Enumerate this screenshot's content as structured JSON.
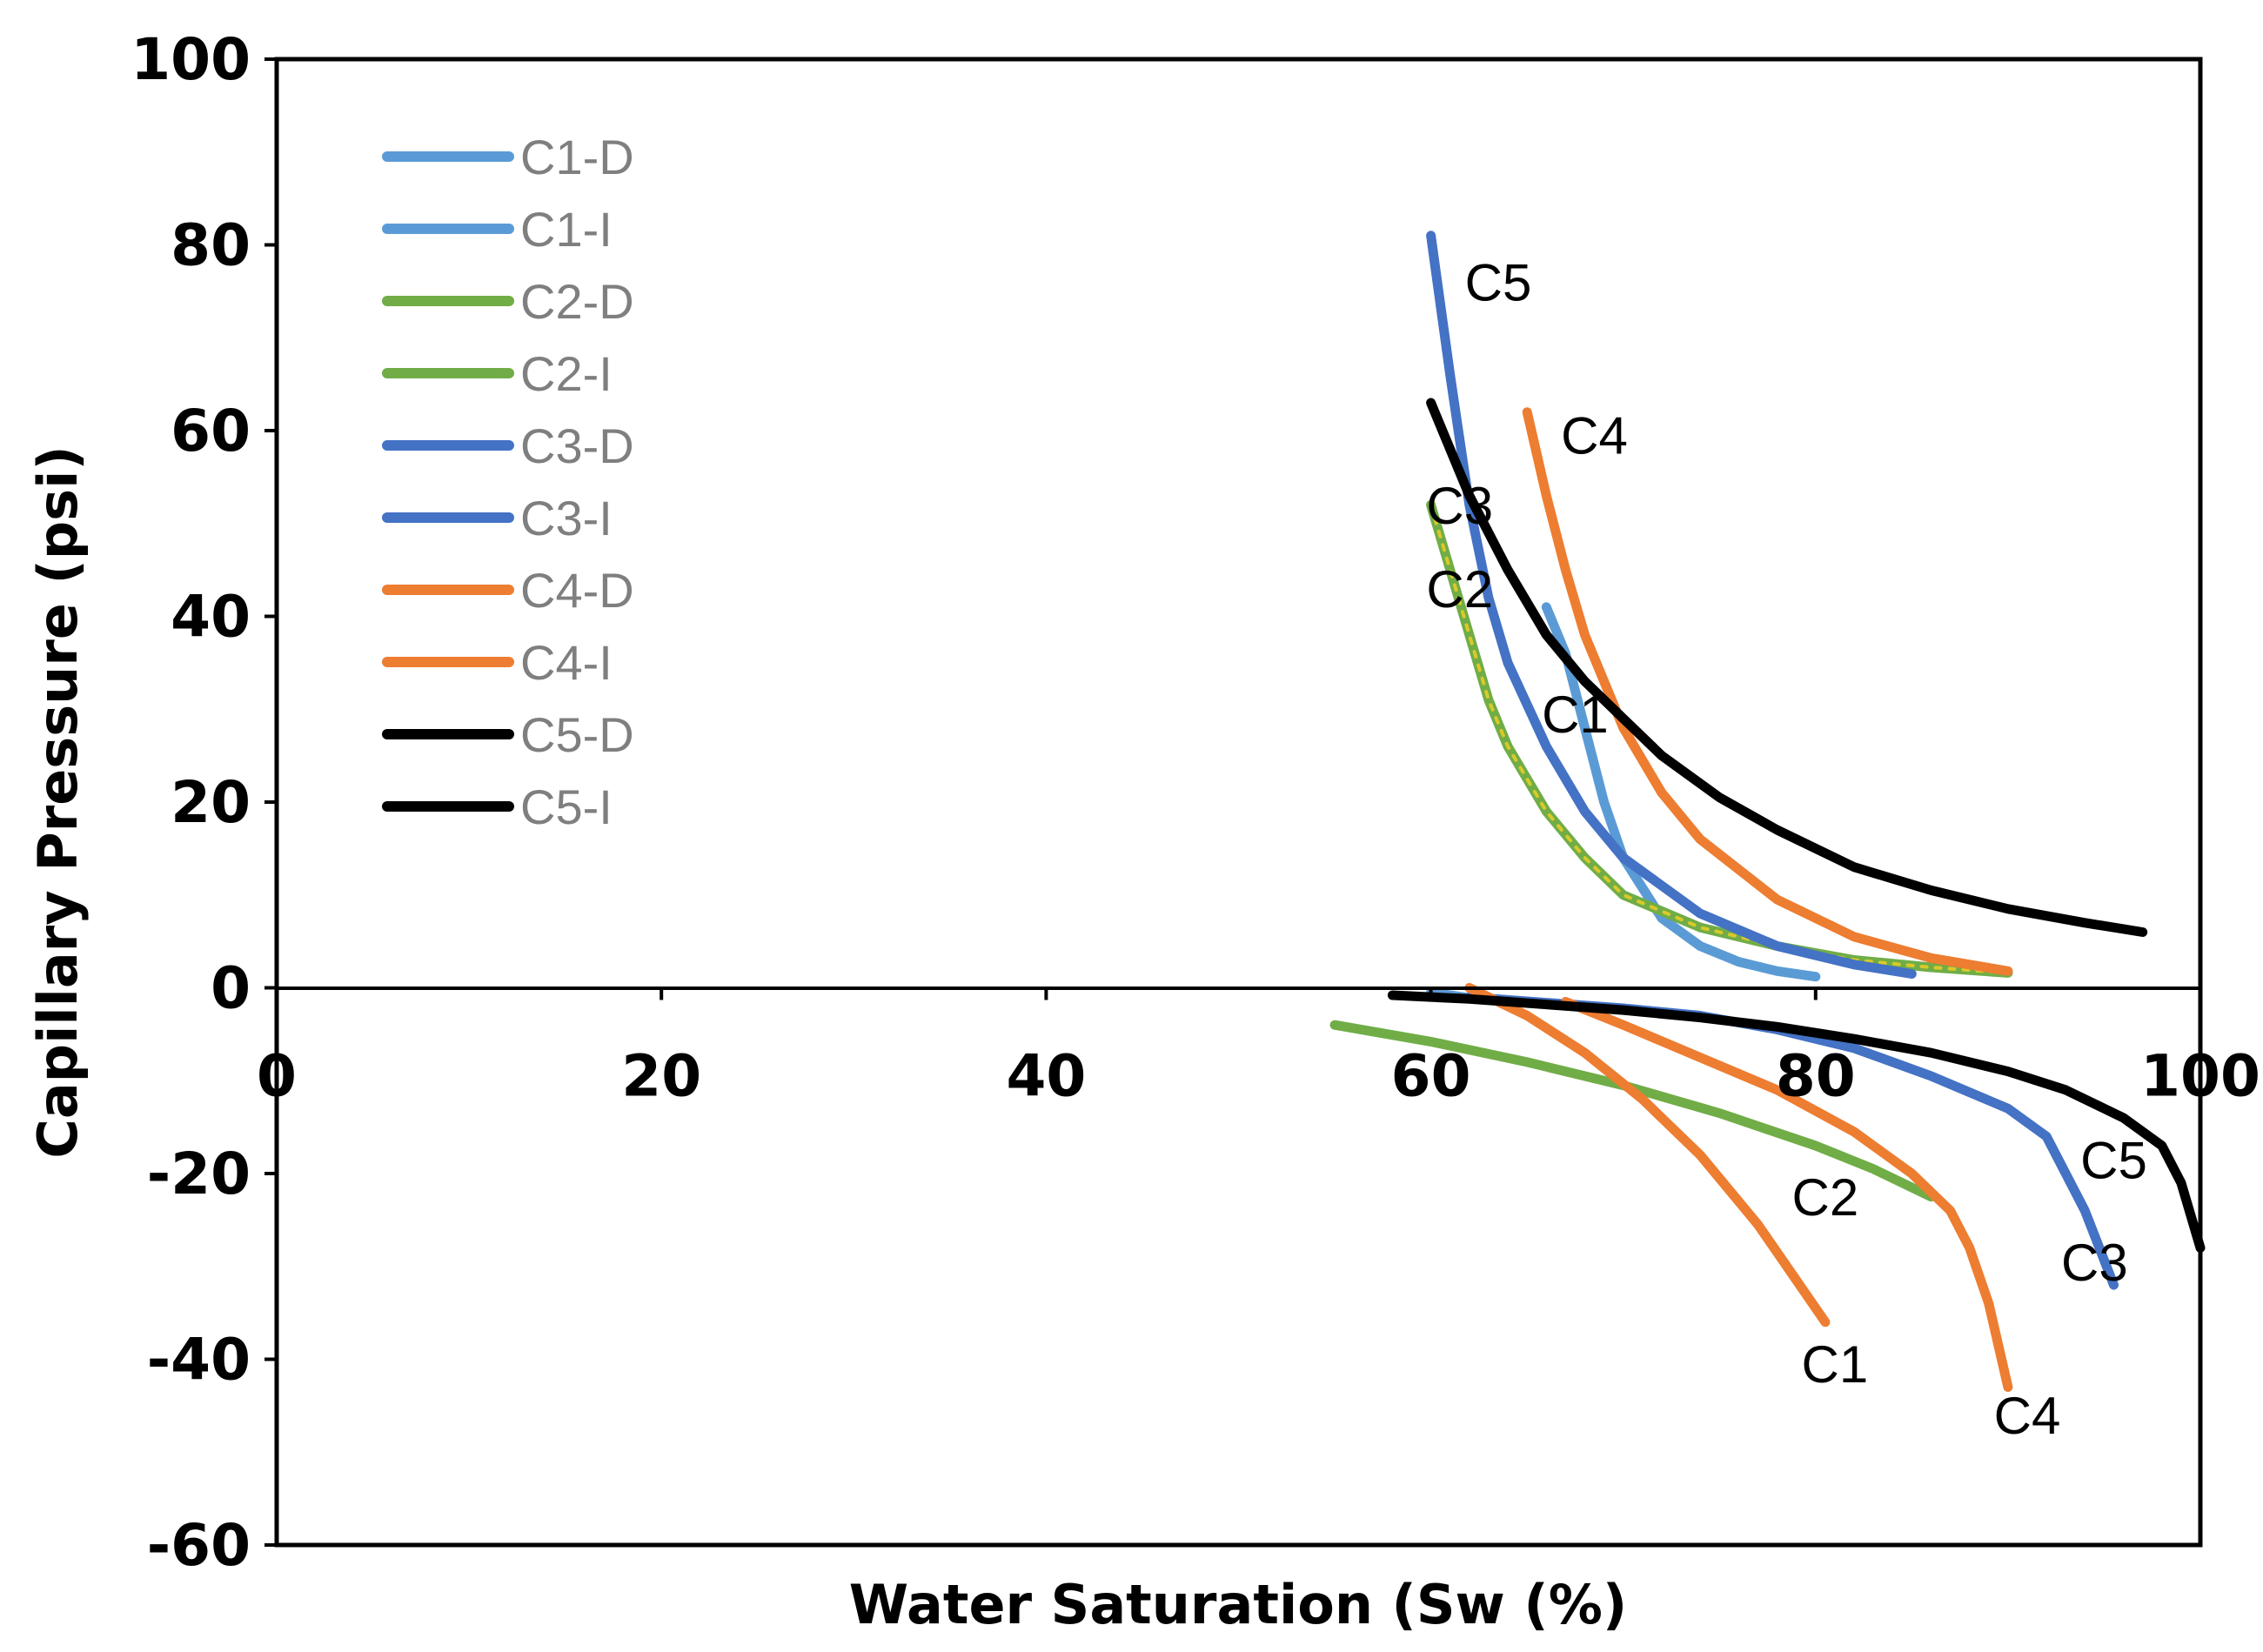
{
  "chart_data": {
    "type": "line",
    "title": "",
    "xlabel": "Water Saturation (Sw (%)",
    "ylabel": "Capillary Pressure (psi)",
    "xlim": [
      0,
      100
    ],
    "ylim": [
      -60,
      100
    ],
    "xticks": [
      "0",
      "20",
      "40",
      "60",
      "80",
      "100"
    ],
    "yticks": [
      "100",
      "80",
      "60",
      "40",
      "20",
      "0",
      "-20",
      "-40",
      "-60"
    ],
    "grid": false,
    "legend_position": "top-left",
    "series": [
      {
        "name": "C1-D",
        "color": "#5b9bd5",
        "x": [
          66,
          67,
          68,
          69,
          70,
          72,
          74,
          76,
          78,
          80
        ],
        "y": [
          41,
          36,
          28,
          20,
          14,
          7.5,
          4.5,
          2.8,
          1.8,
          1.2
        ]
      },
      {
        "name": "C1-I",
        "color": "#5b9bd5",
        "x": [
          60,
          61,
          62,
          63
        ],
        "y": [
          -0.5,
          -0.8,
          -1.1,
          -1.3
        ]
      },
      {
        "name": "C2-D",
        "color": "#70ad47",
        "x": [
          60,
          61,
          62,
          63,
          64,
          66,
          68,
          70,
          74,
          78,
          82,
          86,
          90
        ],
        "y": [
          52,
          45,
          38,
          31,
          26,
          19,
          14,
          10,
          6.5,
          4.5,
          3,
          2.2,
          1.6
        ]
      },
      {
        "name": "C2-I",
        "color": "#70ad47",
        "x": [
          55,
          60,
          65,
          70,
          75,
          80,
          83,
          86
        ],
        "y": [
          -4,
          -5.8,
          -8,
          -10.5,
          -13.5,
          -17,
          -19.5,
          -22.5
        ]
      },
      {
        "name": "C3-D",
        "color": "#4472c4",
        "x": [
          60,
          61,
          62,
          63,
          64,
          66,
          68,
          70,
          74,
          78,
          82,
          85
        ],
        "y": [
          81,
          66,
          52,
          42,
          35,
          26,
          19,
          14,
          8,
          4.5,
          2.5,
          1.5
        ]
      },
      {
        "name": "C3-I",
        "color": "#4472c4",
        "x": [
          62,
          66,
          70,
          74,
          78,
          82,
          86,
          90,
          92,
          94,
          95.5
        ],
        "y": [
          -1,
          -1.6,
          -2.2,
          -3,
          -4.5,
          -6.5,
          -9.5,
          -13,
          -16,
          -24,
          -32
        ]
      },
      {
        "name": "C4-D",
        "color": "#ed7d31",
        "x": [
          65,
          66,
          67,
          68,
          70,
          72,
          74,
          78,
          82,
          86,
          90
        ],
        "y": [
          62,
          53,
          45,
          38,
          28,
          21,
          16,
          9.5,
          5.5,
          3.2,
          1.8
        ]
      },
      {
        "name": "C4-I",
        "color": "#ed7d31",
        "x": [
          62,
          65,
          68,
          71,
          74,
          77,
          80.5
        ],
        "y": [
          0,
          -3,
          -7,
          -12,
          -18,
          -25.5,
          -36
        ],
        "x2": [
          67,
          70,
          74,
          78,
          82,
          85,
          87,
          88,
          89,
          90
        ],
        "y2": [
          -1.5,
          -4,
          -7.5,
          -11,
          -15.5,
          -20,
          -24,
          -28,
          -34,
          -43
        ]
      },
      {
        "name": "C5-D",
        "color": "#000000",
        "x": [
          60,
          62,
          64,
          66,
          68,
          70,
          72,
          75,
          78,
          82,
          86,
          90,
          94,
          97
        ],
        "y": [
          63,
          53,
          45,
          38,
          33,
          29,
          25,
          20.5,
          17,
          13,
          10.5,
          8.5,
          7,
          6
        ]
      },
      {
        "name": "C5-I",
        "color": "#000000",
        "x": [
          58,
          62,
          66,
          70,
          74,
          78,
          82,
          86,
          90,
          93,
          96,
          98,
          99,
          100
        ],
        "y": [
          -0.8,
          -1.2,
          -1.8,
          -2.4,
          -3.2,
          -4.2,
          -5.5,
          -7,
          -9,
          -11,
          -14,
          -17,
          -21,
          -28
        ]
      }
    ],
    "curve_labels": [
      {
        "text": "C5",
        "x": 63.5,
        "y": 74
      },
      {
        "text": "C4",
        "x": 68.5,
        "y": 57.5
      },
      {
        "text": "C3",
        "x": 61.5,
        "y": 50
      },
      {
        "text": "C2",
        "x": 61.5,
        "y": 41
      },
      {
        "text": "C1",
        "x": 67.5,
        "y": 27.5
      },
      {
        "text": "C2",
        "x": 80.5,
        "y": -24.5
      },
      {
        "text": "C1",
        "x": 81,
        "y": -42.5
      },
      {
        "text": "C4",
        "x": 91,
        "y": -48
      },
      {
        "text": "C5",
        "x": 95.5,
        "y": -20.5
      },
      {
        "text": "C3",
        "x": 94.5,
        "y": -31.5
      }
    ]
  }
}
